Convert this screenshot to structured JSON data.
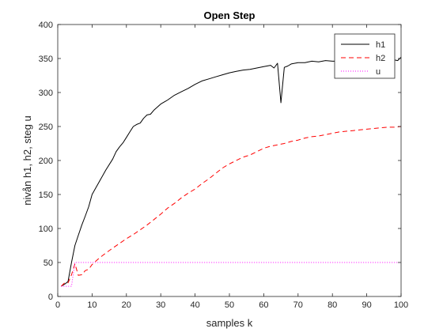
{
  "chart_data": {
    "type": "line",
    "title": "Open Step",
    "xlabel": "samples k",
    "ylabel": "nivån h1, h2, steg u",
    "xlim": [
      0,
      100
    ],
    "ylim": [
      0,
      400
    ],
    "xticks": [
      0,
      10,
      20,
      30,
      40,
      50,
      60,
      70,
      80,
      90,
      100
    ],
    "yticks": [
      0,
      50,
      100,
      150,
      200,
      250,
      300,
      350,
      400
    ],
    "grid": false,
    "legend_position": "top-right",
    "series": [
      {
        "name": "h1",
        "color": "#000000",
        "style": "solid",
        "points": [
          [
            1,
            15
          ],
          [
            2,
            18
          ],
          [
            3,
            22
          ],
          [
            4,
            50
          ],
          [
            5,
            75
          ],
          [
            6,
            90
          ],
          [
            7,
            105
          ],
          [
            8,
            118
          ],
          [
            9,
            132
          ],
          [
            10,
            150
          ],
          [
            12,
            168
          ],
          [
            14,
            186
          ],
          [
            16,
            202
          ],
          [
            17,
            213
          ],
          [
            18,
            220
          ],
          [
            19,
            226
          ],
          [
            20,
            234
          ],
          [
            21,
            242
          ],
          [
            22,
            250
          ],
          [
            23,
            253
          ],
          [
            24,
            255
          ],
          [
            25,
            262
          ],
          [
            26,
            267
          ],
          [
            27,
            268
          ],
          [
            28,
            274
          ],
          [
            30,
            283
          ],
          [
            32,
            289
          ],
          [
            34,
            296
          ],
          [
            36,
            301
          ],
          [
            38,
            306
          ],
          [
            40,
            312
          ],
          [
            42,
            317
          ],
          [
            44,
            320
          ],
          [
            46,
            323
          ],
          [
            48,
            326
          ],
          [
            50,
            329
          ],
          [
            52,
            331
          ],
          [
            54,
            333
          ],
          [
            56,
            334
          ],
          [
            58,
            336
          ],
          [
            60,
            338
          ],
          [
            62,
            340
          ],
          [
            63,
            336
          ],
          [
            64,
            343
          ],
          [
            65,
            285
          ],
          [
            66,
            337
          ],
          [
            67,
            339
          ],
          [
            68,
            342
          ],
          [
            70,
            344
          ],
          [
            72,
            344
          ],
          [
            74,
            346
          ],
          [
            76,
            345
          ],
          [
            78,
            347
          ],
          [
            80,
            346
          ],
          [
            82,
            346
          ],
          [
            84,
            347
          ],
          [
            86,
            347
          ],
          [
            88,
            346
          ],
          [
            90,
            347
          ],
          [
            92,
            348
          ],
          [
            94,
            346
          ],
          [
            96,
            347
          ],
          [
            97,
            350
          ],
          [
            98,
            348
          ],
          [
            99,
            347
          ],
          [
            100,
            352
          ]
        ]
      },
      {
        "name": "h2",
        "color": "#ff0000",
        "style": "dashed",
        "points": [
          [
            1,
            15
          ],
          [
            2,
            20
          ],
          [
            3,
            20
          ],
          [
            4,
            32
          ],
          [
            5,
            48
          ],
          [
            6,
            31
          ],
          [
            7,
            32
          ],
          [
            8,
            38
          ],
          [
            9,
            40
          ],
          [
            10,
            47
          ],
          [
            12,
            56
          ],
          [
            14,
            64
          ],
          [
            16,
            71
          ],
          [
            18,
            78
          ],
          [
            20,
            85
          ],
          [
            22,
            91
          ],
          [
            24,
            98
          ],
          [
            26,
            105
          ],
          [
            28,
            113
          ],
          [
            30,
            121
          ],
          [
            32,
            130
          ],
          [
            34,
            137
          ],
          [
            36,
            145
          ],
          [
            38,
            152
          ],
          [
            40,
            158
          ],
          [
            42,
            166
          ],
          [
            44,
            173
          ],
          [
            46,
            181
          ],
          [
            48,
            189
          ],
          [
            50,
            195
          ],
          [
            52,
            200
          ],
          [
            54,
            205
          ],
          [
            56,
            208
          ],
          [
            58,
            213
          ],
          [
            60,
            218
          ],
          [
            62,
            221
          ],
          [
            64,
            223
          ],
          [
            66,
            225
          ],
          [
            68,
            228
          ],
          [
            70,
            230
          ],
          [
            72,
            233
          ],
          [
            74,
            235
          ],
          [
            76,
            236
          ],
          [
            78,
            238
          ],
          [
            80,
            240
          ],
          [
            82,
            242
          ],
          [
            84,
            243
          ],
          [
            86,
            244
          ],
          [
            88,
            245
          ],
          [
            90,
            246
          ],
          [
            92,
            247
          ],
          [
            94,
            248
          ],
          [
            96,
            249
          ],
          [
            98,
            249
          ],
          [
            100,
            250
          ]
        ]
      },
      {
        "name": "u",
        "color": "#ff00ff",
        "style": "dotted",
        "points": [
          [
            1,
            15
          ],
          [
            4,
            15
          ],
          [
            5,
            50
          ],
          [
            100,
            50
          ]
        ]
      }
    ]
  }
}
